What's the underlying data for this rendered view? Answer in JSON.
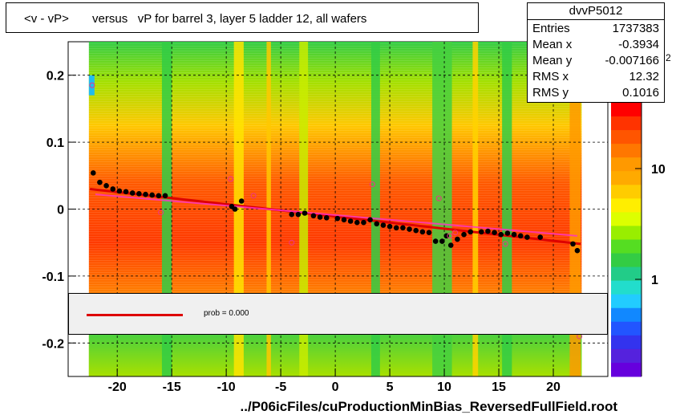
{
  "title": "<v - vP>       versus   vP for barrel 3, layer 5 ladder 12, all wafers",
  "stats": {
    "name": "dvvP5012",
    "rows": [
      {
        "key": "Entries",
        "value": "1737383"
      },
      {
        "key": "Mean x",
        "value": "-0.3934"
      },
      {
        "key": "Mean y",
        "value": "-0.007166"
      },
      {
        "key": "RMS x",
        "value": "12.32"
      },
      {
        "key": "RMS y",
        "value": "0.1016"
      }
    ]
  },
  "legend": {
    "fit_label": "prob = 0.000",
    "fit_color": "#dd0000"
  },
  "colorbar": {
    "tick_labels": [
      "10",
      "1"
    ],
    "partial_label": "2"
  },
  "chart_data": {
    "type": "heatmap",
    "title": "<v - vP>       versus   vP for barrel 3, layer 5 ladder 12, all wafers",
    "xlabel": "../P06icFiles/cuProductionMinBias_ReversedFullField.root",
    "ylabel": "",
    "xlim": [
      -24.5,
      25
    ],
    "ylim": [
      -0.25,
      0.25
    ],
    "x_ticks": [
      -20,
      -15,
      -10,
      -5,
      0,
      5,
      10,
      15,
      20
    ],
    "y_ticks": [
      -0.2,
      -0.1,
      0,
      0.1,
      0.2
    ],
    "x_tick_labels": [
      "-20",
      "-15",
      "-10",
      "-5",
      "0",
      "5",
      "10",
      "15",
      "20"
    ],
    "y_tick_labels": [
      "-0.2",
      "-0.1",
      "0",
      "0.1",
      "0.2"
    ],
    "grid": true,
    "colorscale": "log",
    "profile_points": {
      "x": [
        -22.2,
        -21.6,
        -21,
        -20.4,
        -19.8,
        -19.2,
        -18.6,
        -18,
        -17.4,
        -16.8,
        -16.2,
        -15.6,
        -9.5,
        -9.2,
        -8.6,
        -4,
        -3.4,
        -2.8,
        -2,
        -1.4,
        -0.8,
        0.2,
        0.8,
        1.4,
        2,
        2.6,
        3.2,
        3.8,
        4.4,
        5,
        5.6,
        6.2,
        6.8,
        7.4,
        8,
        8.6,
        9.2,
        9.8,
        10.2,
        10.6,
        11.2,
        11.8,
        12.4,
        13.4,
        14,
        14.6,
        15.2,
        15.8,
        16.4,
        17,
        17.6,
        18.8,
        21.8,
        22.2
      ],
      "y": [
        0.054,
        0.04,
        0.035,
        0.03,
        0.027,
        0.026,
        0.024,
        0.023,
        0.022,
        0.021,
        0.02,
        0.02,
        0.004,
        0.0,
        0.012,
        -0.008,
        -0.008,
        -0.006,
        -0.01,
        -0.012,
        -0.013,
        -0.014,
        -0.016,
        -0.018,
        -0.02,
        -0.02,
        -0.016,
        -0.022,
        -0.024,
        -0.026,
        -0.028,
        -0.028,
        -0.03,
        -0.032,
        -0.034,
        -0.035,
        -0.048,
        -0.048,
        -0.04,
        -0.054,
        -0.045,
        -0.038,
        -0.034,
        -0.034,
        -0.033,
        -0.035,
        -0.038,
        -0.036,
        -0.038,
        -0.04,
        -0.042,
        -0.042,
        -0.052,
        -0.062
      ]
    },
    "open_markers": {
      "x": [
        -22.3,
        -16,
        -9.6,
        -7.5,
        -4,
        3.4,
        9.5,
        10.5,
        11,
        15.6,
        22.4
      ],
      "y": [
        0.185,
        -0.005,
        0.045,
        0.02,
        -0.05,
        0.037,
        0.016,
        -0.04,
        -0.035,
        -0.052,
        -0.19
      ]
    },
    "fit_line": {
      "x": [
        -22.5,
        22.5
      ],
      "y": [
        0.03,
        -0.052
      ]
    }
  }
}
